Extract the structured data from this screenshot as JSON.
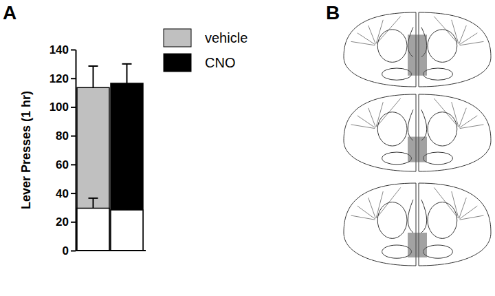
{
  "chart_data": {
    "type": "bar",
    "panel_label": "A",
    "ylabel": "Lever Presses (1 hr)",
    "categories": [
      null,
      null
    ],
    "stacked": false,
    "legend": "top-right",
    "series": [
      {
        "name": "vehicle",
        "color": "#c0c0c0",
        "values": [
          113.5,
          null
        ],
        "errors": [
          15,
          null
        ]
      },
      {
        "name": "CNO",
        "color": "#000000",
        "values": [
          null,
          116.5
        ],
        "errors": [
          null,
          13.5
        ]
      },
      {
        "color": "#ffffff",
        "values": [
          29.5,
          28.3
        ],
        "errors": [
          7,
          4.5
        ]
      }
    ],
    "ylim": [
      0,
      140
    ],
    "yticks": [
      0,
      20,
      40,
      60,
      80,
      100,
      120,
      140
    ]
  },
  "panel_b": {
    "label": "B"
  }
}
